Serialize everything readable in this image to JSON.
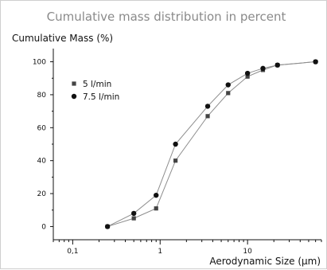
{
  "chart_data": {
    "type": "line",
    "title": "Cumulative mass distribution in percent",
    "ylabel": "Cumulative Mass (%)",
    "xlabel": "Aerodynamic Size (µm)",
    "xscale": "log",
    "xlim": [
      0.06,
      70
    ],
    "ylim": [
      -8,
      108
    ],
    "x_ticks": [
      0.1,
      1,
      10
    ],
    "x_tick_labels": [
      "0,1",
      "1",
      "10"
    ],
    "y_ticks": [
      0,
      20,
      40,
      60,
      80,
      100
    ],
    "y_tick_labels": [
      "0",
      "20",
      "40",
      "60",
      "80",
      "100"
    ],
    "grid": false,
    "legend_position": "upper-left",
    "series": [
      {
        "name": "5 l/min",
        "marker": "square",
        "color": "#444444",
        "x": [
          0.25,
          0.5,
          0.9,
          1.5,
          3.5,
          6,
          10,
          15,
          22,
          60
        ],
        "y": [
          0,
          5,
          11,
          40,
          67,
          81,
          91,
          95,
          98,
          100
        ]
      },
      {
        "name": "7.5 l/min",
        "marker": "circle",
        "color": "#111111",
        "x": [
          0.25,
          0.5,
          0.9,
          1.5,
          3.5,
          6,
          10,
          15,
          22,
          60
        ],
        "y": [
          0,
          8,
          19,
          50,
          73,
          86,
          93,
          96,
          98,
          100
        ]
      }
    ]
  }
}
